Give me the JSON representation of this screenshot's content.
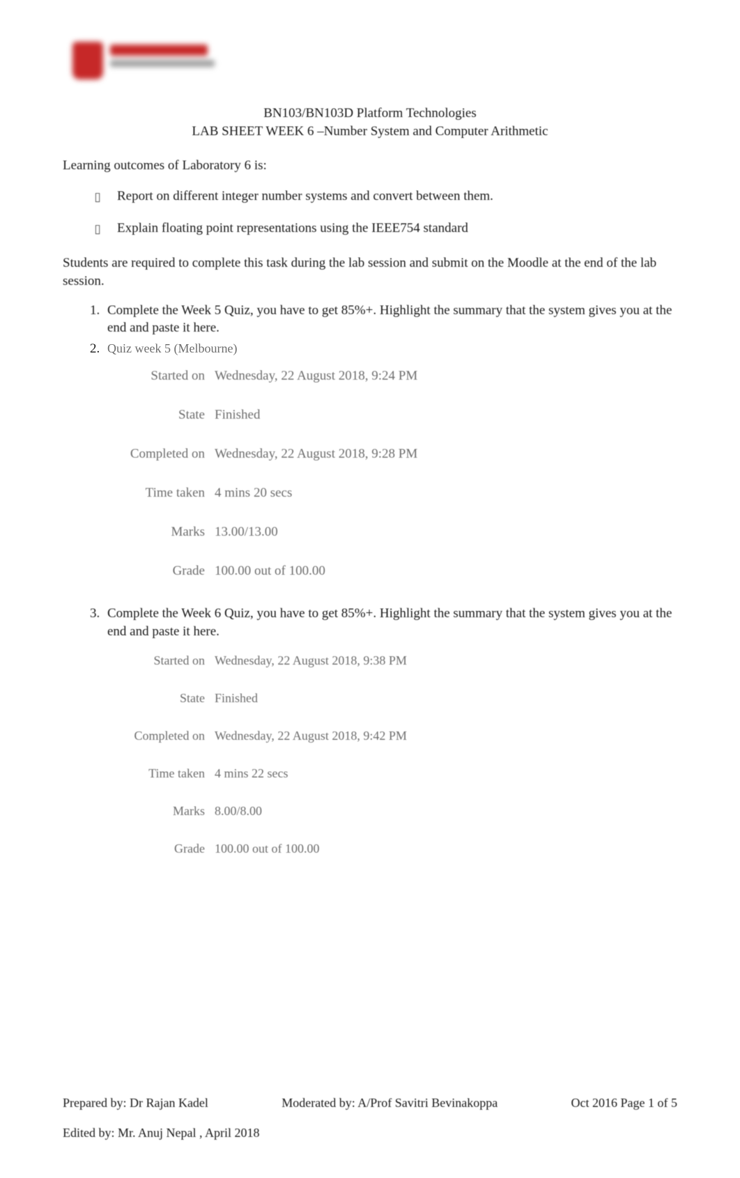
{
  "header": {
    "course_line": "BN103/BN103D Platform Technologies",
    "lab_line": "LAB SHEET WEEK 6 –Number System and Computer Arithmetic"
  },
  "learning_intro": "Learning outcomes of Laboratory 6 is:",
  "bullets": [
    "Report on different integer number systems and convert between them.",
    "Explain floating point representations using the IEEE754 standard"
  ],
  "instruction": "Students are required to complete this task during the lab session and submit on the Moodle at the end of the lab session.",
  "list": {
    "item1": "Complete the Week 5 Quiz, you have to get 85%+. Highlight the summary that the system gives you at the end and paste it here.",
    "item2": "Quiz week 5 (Melbourne)",
    "item3": "Complete the Week 6 Quiz, you have to get 85%+. Highlight the summary that the system gives you at the end and paste it here."
  },
  "quiz5": {
    "labels": {
      "started": "Started on",
      "state": "State",
      "completed": "Completed on",
      "time": "Time taken",
      "marks": "Marks",
      "grade": "Grade"
    },
    "started": "Wednesday, 22 August 2018, 9:24 PM",
    "state": "Finished",
    "completed": "Wednesday, 22 August 2018, 9:28 PM",
    "time": "4 mins 20 secs",
    "marks": "13.00/13.00",
    "grade": "100.00 out of 100.00"
  },
  "quiz6": {
    "labels": {
      "started": "Started on",
      "state": "State",
      "completed": "Completed on",
      "time": "Time taken",
      "marks": "Marks",
      "grade": "Grade"
    },
    "started": "Wednesday, 22 August 2018, 9:38 PM",
    "state": "Finished",
    "completed": "Wednesday, 22 August 2018, 9:42 PM",
    "time": "4 mins 22 secs",
    "marks": "8.00/8.00",
    "grade": "100.00  out of 100.00"
  },
  "footer": {
    "prepared": "Prepared by: Dr Rajan Kadel",
    "moderated": "Moderated by: A/Prof Savitri Bevinakoppa",
    "dateinfo": "Oct 2016   Page 1 of 5",
    "edited": "Edited by: Mr. Anuj Nepal , April 2018"
  },
  "style": {
    "body_width": 1062,
    "body_height": 1691,
    "bg": "#ffffff",
    "text_color": "#1a1a1a",
    "muted_color": "#6d6d6d",
    "accent_red": "#c62828",
    "base_fontsize": 19
  }
}
